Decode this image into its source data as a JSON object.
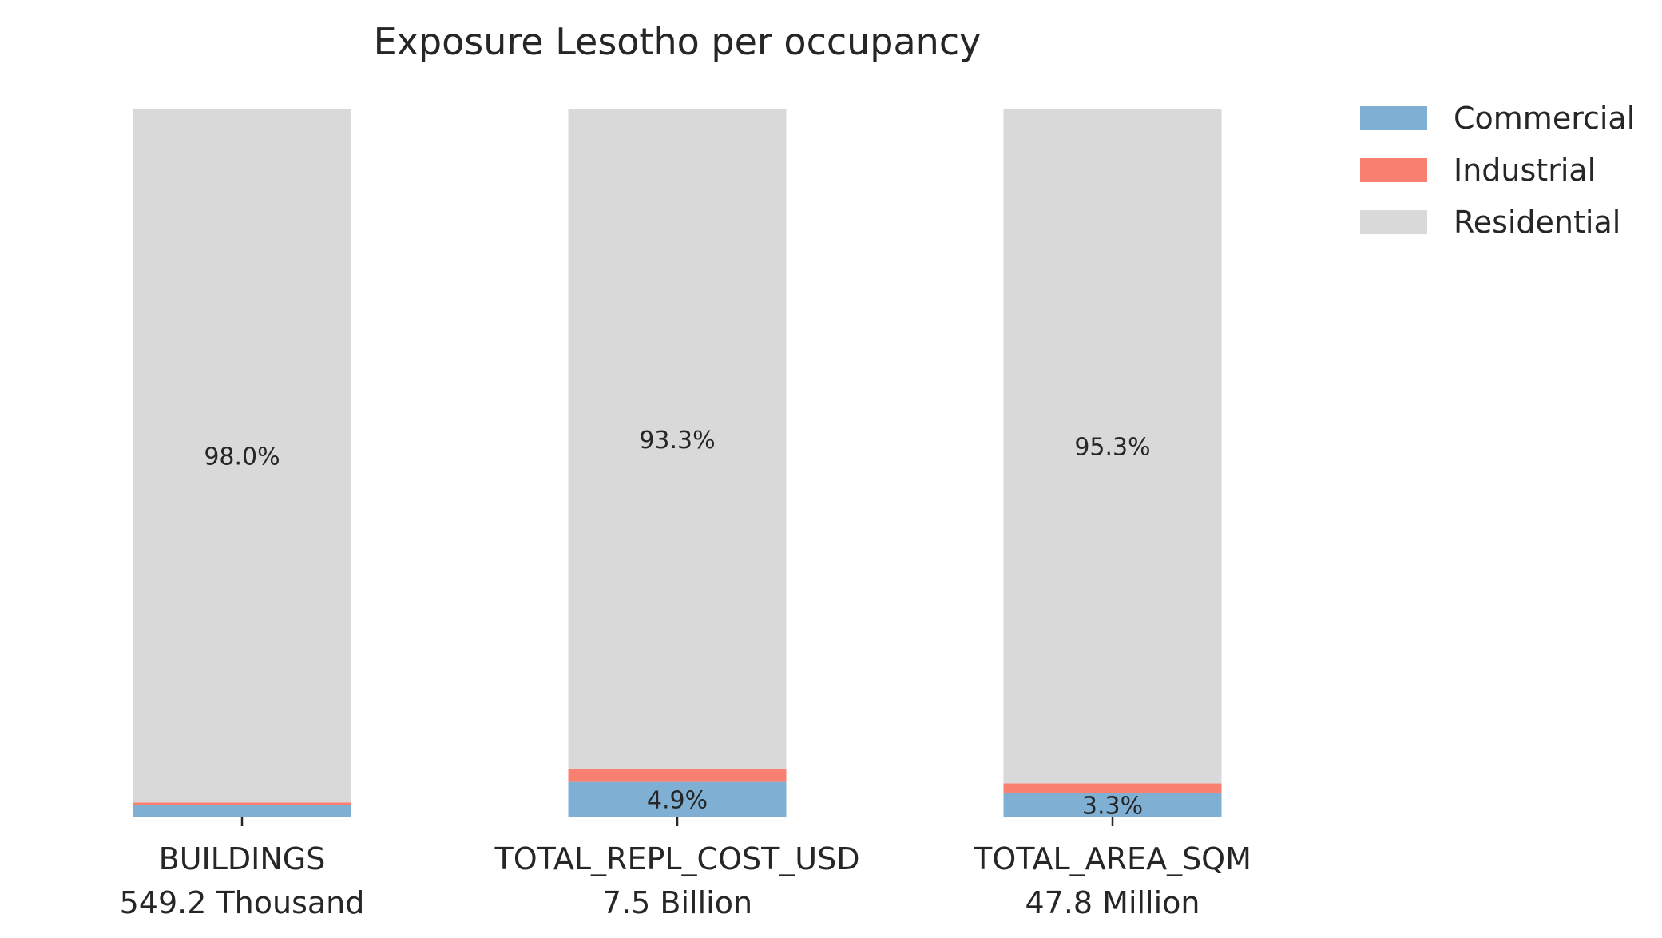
{
  "chart_data": {
    "type": "bar",
    "stacked": true,
    "normalized": true,
    "title": "Exposure Lesotho per occupancy",
    "xlabel": "",
    "ylabel": "",
    "ylim": [
      0,
      100
    ],
    "grid": false,
    "legend_position": "top-right",
    "categories": [
      "BUILDINGS",
      "TOTAL_REPL_COST_USD",
      "TOTAL_AREA_SQM"
    ],
    "category_totals": [
      "549.2 Thousand",
      "7.5 Billion",
      "47.8 Million"
    ],
    "series": [
      {
        "name": "Commercial",
        "color": "#7fb0d4",
        "values": [
          1.6,
          4.9,
          3.3
        ],
        "labels": [
          "",
          "4.9%",
          "3.3%"
        ]
      },
      {
        "name": "Industrial",
        "color": "#f98070",
        "values": [
          0.4,
          1.8,
          1.4
        ],
        "labels": [
          "",
          "",
          ""
        ]
      },
      {
        "name": "Residential",
        "color": "#d9d9d9",
        "values": [
          98.0,
          93.3,
          95.3
        ],
        "labels": [
          "98.0%",
          "93.3%",
          "95.3%"
        ]
      }
    ]
  }
}
